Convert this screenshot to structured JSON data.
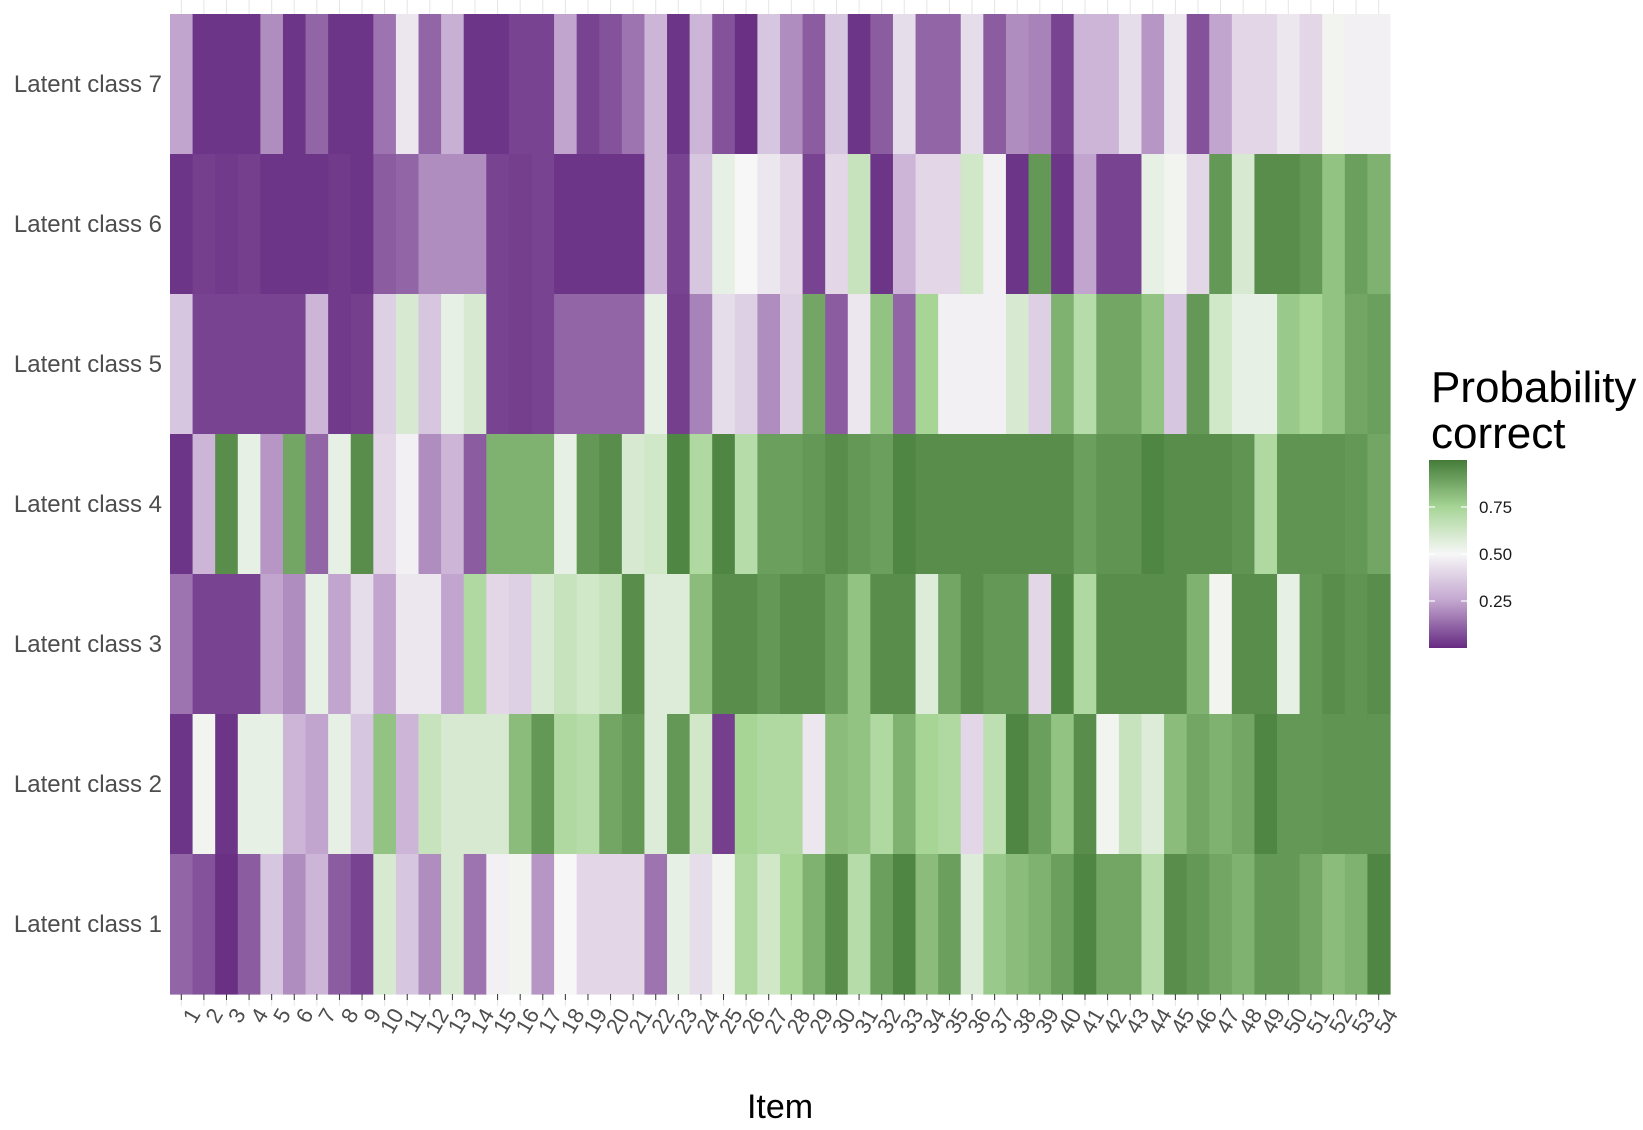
{
  "chart_data": {
    "type": "heatmap",
    "xlabel": "Item",
    "ylabel": "",
    "x_categories": [
      "1",
      "2",
      "3",
      "4",
      "5",
      "6",
      "7",
      "8",
      "9",
      "10",
      "11",
      "12",
      "13",
      "14",
      "15",
      "16",
      "17",
      "18",
      "19",
      "20",
      "21",
      "22",
      "23",
      "24",
      "25",
      "26",
      "27",
      "28",
      "29",
      "30",
      "31",
      "32",
      "33",
      "34",
      "35",
      "36",
      "37",
      "38",
      "39",
      "40",
      "41",
      "42",
      "43",
      "44",
      "45",
      "46",
      "47",
      "48",
      "49",
      "50",
      "51",
      "52",
      "53",
      "54"
    ],
    "y_categories": [
      "Latent class 7",
      "Latent class 6",
      "Latent class 5",
      "Latent class 4",
      "Latent class 3",
      "Latent class 2",
      "Latent class 1"
    ],
    "values": [
      [
        0.25,
        0.02,
        0.02,
        0.02,
        0.2,
        0.02,
        0.12,
        0.02,
        0.02,
        0.15,
        0.45,
        0.12,
        0.28,
        0.02,
        0.02,
        0.05,
        0.05,
        0.25,
        0.05,
        0.08,
        0.15,
        0.3,
        0.02,
        0.3,
        0.08,
        0.01,
        0.35,
        0.2,
        0.1,
        0.35,
        0.02,
        0.1,
        0.42,
        0.12,
        0.12,
        0.42,
        0.1,
        0.2,
        0.18,
        0.05,
        0.3,
        0.3,
        0.42,
        0.22,
        0.45,
        0.08,
        0.25,
        0.4,
        0.4,
        0.45,
        0.4,
        0.52,
        0.48,
        0.48
      ],
      [
        0.02,
        0.04,
        0.03,
        0.04,
        0.02,
        0.02,
        0.02,
        0.03,
        0.02,
        0.1,
        0.12,
        0.2,
        0.2,
        0.2,
        0.05,
        0.04,
        0.05,
        0.02,
        0.02,
        0.02,
        0.02,
        0.3,
        0.05,
        0.35,
        0.55,
        0.5,
        0.45,
        0.4,
        0.05,
        0.4,
        0.65,
        0.02,
        0.3,
        0.4,
        0.4,
        0.62,
        0.48,
        0.02,
        0.92,
        0.02,
        0.25,
        0.05,
        0.05,
        0.55,
        0.52,
        0.4,
        0.92,
        0.6,
        0.95,
        0.95,
        0.92,
        0.8,
        0.9,
        0.85
      ],
      [
        0.35,
        0.05,
        0.05,
        0.05,
        0.05,
        0.05,
        0.3,
        0.03,
        0.04,
        0.38,
        0.6,
        0.35,
        0.55,
        0.6,
        0.05,
        0.04,
        0.05,
        0.12,
        0.12,
        0.12,
        0.12,
        0.55,
        0.04,
        0.18,
        0.42,
        0.38,
        0.2,
        0.38,
        0.88,
        0.1,
        0.45,
        0.8,
        0.12,
        0.75,
        0.48,
        0.48,
        0.48,
        0.6,
        0.38,
        0.85,
        0.7,
        0.88,
        0.88,
        0.8,
        0.35,
        0.92,
        0.62,
        0.55,
        0.55,
        0.78,
        0.75,
        0.8,
        0.88,
        0.9
      ],
      [
        0.02,
        0.3,
        0.95,
        0.55,
        0.22,
        0.88,
        0.12,
        0.55,
        0.95,
        0.4,
        0.48,
        0.2,
        0.3,
        0.1,
        0.85,
        0.85,
        0.85,
        0.55,
        0.92,
        0.95,
        0.6,
        0.62,
        0.97,
        0.72,
        0.97,
        0.7,
        0.9,
        0.9,
        0.92,
        0.95,
        0.92,
        0.9,
        0.97,
        0.95,
        0.95,
        0.95,
        0.95,
        0.95,
        0.95,
        0.95,
        0.9,
        0.93,
        0.93,
        0.97,
        0.95,
        0.95,
        0.95,
        0.93,
        0.72,
        0.93,
        0.93,
        0.93,
        0.92,
        0.88
      ],
      [
        0.15,
        0.05,
        0.05,
        0.05,
        0.25,
        0.2,
        0.55,
        0.25,
        0.42,
        0.25,
        0.45,
        0.45,
        0.25,
        0.72,
        0.4,
        0.38,
        0.6,
        0.65,
        0.62,
        0.65,
        0.95,
        0.58,
        0.58,
        0.82,
        0.95,
        0.95,
        0.92,
        0.95,
        0.95,
        0.9,
        0.8,
        0.95,
        0.95,
        0.58,
        0.88,
        0.95,
        0.92,
        0.92,
        0.4,
        0.97,
        0.72,
        0.95,
        0.95,
        0.95,
        0.95,
        0.85,
        0.52,
        0.95,
        0.95,
        0.55,
        0.92,
        0.95,
        0.93,
        0.95
      ],
      [
        0.02,
        0.52,
        0.02,
        0.55,
        0.55,
        0.3,
        0.25,
        0.55,
        0.35,
        0.8,
        0.3,
        0.65,
        0.6,
        0.6,
        0.6,
        0.82,
        0.92,
        0.72,
        0.7,
        0.88,
        0.92,
        0.58,
        0.92,
        0.62,
        0.04,
        0.75,
        0.72,
        0.72,
        0.45,
        0.82,
        0.8,
        0.72,
        0.85,
        0.75,
        0.72,
        0.4,
        0.68,
        0.97,
        0.9,
        0.8,
        0.95,
        0.52,
        0.65,
        0.58,
        0.82,
        0.88,
        0.85,
        0.88,
        0.97,
        0.92,
        0.92,
        0.93,
        0.93,
        0.93
      ],
      [
        0.12,
        0.08,
        0.01,
        0.1,
        0.35,
        0.2,
        0.3,
        0.1,
        0.05,
        0.6,
        0.35,
        0.2,
        0.6,
        0.15,
        0.48,
        0.52,
        0.22,
        0.5,
        0.4,
        0.4,
        0.4,
        0.15,
        0.55,
        0.42,
        0.52,
        0.72,
        0.62,
        0.75,
        0.85,
        0.95,
        0.7,
        0.9,
        0.97,
        0.82,
        0.9,
        0.58,
        0.78,
        0.82,
        0.85,
        0.9,
        0.97,
        0.88,
        0.88,
        0.7,
        0.95,
        0.92,
        0.88,
        0.85,
        0.92,
        0.92,
        0.88,
        0.82,
        0.85,
        0.97
      ]
    ],
    "legend": {
      "title": [
        "Probability",
        "correct"
      ],
      "ticks": [
        0.75,
        0.5,
        0.25
      ],
      "tick_labels": [
        "0.75",
        "0.50",
        "0.25"
      ],
      "range": [
        0,
        1
      ],
      "placement": "right"
    },
    "colors": {
      "low": "#662b81",
      "mid": "#f7f7f7",
      "high": "#447b38",
      "midpoint": 0.5
    },
    "grid": true
  }
}
